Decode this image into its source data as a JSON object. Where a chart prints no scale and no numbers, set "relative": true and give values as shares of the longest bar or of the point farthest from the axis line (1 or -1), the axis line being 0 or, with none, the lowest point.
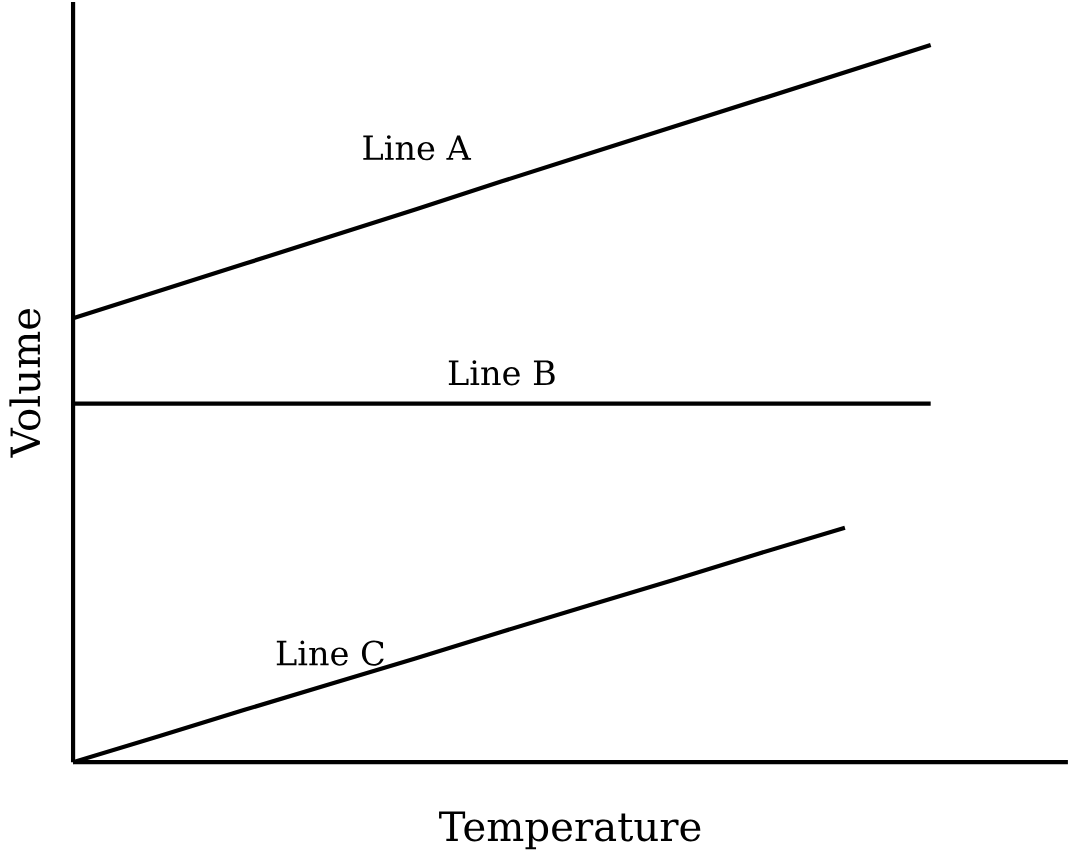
{
  "chart_data": {
    "type": "line",
    "xlabel": "Temperature",
    "ylabel": "Volume",
    "relative": true,
    "legend": false,
    "marker": "none",
    "line_style": "solid",
    "categories": [
      null,
      null,
      null,
      null,
      null,
      null,
      null,
      null,
      null,
      null,
      null
    ],
    "series": [
      {
        "name": "Line A",
        "color": "#000000",
        "values": [
          0.619,
          0.657,
          0.695,
          0.733,
          0.771,
          0.81,
          0.848,
          0.886,
          0.924,
          0.962,
          1.0
        ]
      },
      {
        "name": "Line B",
        "color": "#000000",
        "values": [
          0.5,
          0.5,
          0.5,
          0.5,
          0.5,
          0.5,
          0.5,
          0.5,
          0.5,
          0.5,
          0.5
        ]
      },
      {
        "name": "Line C",
        "color": "#000000",
        "values": [
          0,
          0.036,
          0.073,
          0.109,
          0.145,
          0.182,
          0.218,
          0.254,
          0.291,
          0.327,
          null
        ]
      }
    ]
  }
}
